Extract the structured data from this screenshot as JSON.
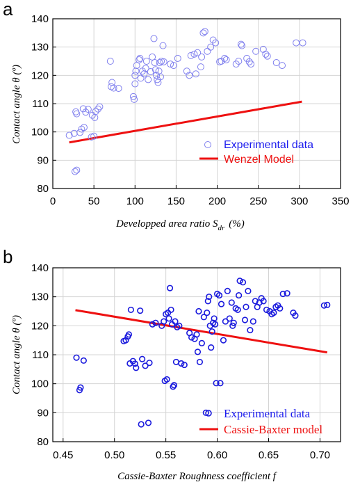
{
  "chart_data": [
    {
      "type": "scatter",
      "panel_label": "a",
      "xlabel": "Developped area ratio S",
      "xlabel_sub": "dr",
      "xlabel_unit": "(%)",
      "ylabel": "Contact angle θ (º)",
      "xlim": [
        0,
        350
      ],
      "ylim": [
        80,
        140
      ],
      "xticks": [
        0,
        50,
        100,
        150,
        200,
        250,
        300,
        350
      ],
      "yticks": [
        80,
        90,
        100,
        110,
        120,
        130,
        140
      ],
      "grid": true,
      "legend_position": "bottom-right",
      "colors": {
        "points": "#8080ee",
        "model": "#ee1111",
        "legend_text_points": "#1a1aee",
        "legend_text_model": "#ee1111"
      },
      "series": [
        {
          "name": "Experimental data",
          "kind": "points",
          "points": [
            [
              20,
              98.8
            ],
            [
              26,
              99.5
            ],
            [
              27,
              86.0
            ],
            [
              29,
              86.5
            ],
            [
              28,
              107.1
            ],
            [
              29,
              106.4
            ],
            [
              33,
              99.8
            ],
            [
              35,
              101.0
            ],
            [
              38,
              101.6
            ],
            [
              37,
              108.2
            ],
            [
              40,
              107.0
            ],
            [
              43,
              108.0
            ],
            [
              48,
              105.9
            ],
            [
              47,
              98.2
            ],
            [
              50,
              98.5
            ],
            [
              51,
              105.1
            ],
            [
              52,
              107.2
            ],
            [
              55,
              108.1
            ],
            [
              57,
              108.9
            ],
            [
              70,
              125.0
            ],
            [
              72,
              117.5
            ],
            [
              71,
              116.0
            ],
            [
              74,
              115.5
            ],
            [
              80,
              115.4
            ],
            [
              98,
              112.5
            ],
            [
              99,
              111.5
            ],
            [
              100,
              117.0
            ],
            [
              100,
              120.0
            ],
            [
              101,
              121.5
            ],
            [
              102,
              123.5
            ],
            [
              105,
              125.5
            ],
            [
              106,
              126.0
            ],
            [
              107,
              119.0
            ],
            [
              109,
              121.5
            ],
            [
              111,
              120.5
            ],
            [
              113,
              122.5
            ],
            [
              114,
              125.0
            ],
            [
              116,
              118.5
            ],
            [
              119,
              121.3
            ],
            [
              121,
              126.5
            ],
            [
              123,
              133.0
            ],
            [
              124,
              124.5
            ],
            [
              125,
              122.0
            ],
            [
              126,
              120.0
            ],
            [
              127,
              118.5
            ],
            [
              128,
              117.5
            ],
            [
              129,
              121.5
            ],
            [
              130,
              124.5
            ],
            [
              131,
              119.5
            ],
            [
              132,
              125.0
            ],
            [
              134,
              130.5
            ],
            [
              135,
              124.8
            ],
            [
              143,
              124.0
            ],
            [
              147,
              123.5
            ],
            [
              152,
              126.0
            ],
            [
              163,
              121.5
            ],
            [
              166,
              120.0
            ],
            [
              168,
              127.0
            ],
            [
              172,
              127.5
            ],
            [
              174,
              120.5
            ],
            [
              176,
              128.0
            ],
            [
              180,
              123.0
            ],
            [
              181,
              126.5
            ],
            [
              183,
              135.0
            ],
            [
              185,
              135.5
            ],
            [
              188,
              128.5
            ],
            [
              192,
              130.0
            ],
            [
              195,
              132.5
            ],
            [
              198,
              131.5
            ],
            [
              203,
              124.8
            ],
            [
              205,
              125.0
            ],
            [
              209,
              126.0
            ],
            [
              211,
              125.5
            ],
            [
              223,
              124.0
            ],
            [
              226,
              125.0
            ],
            [
              229,
              131.0
            ],
            [
              230,
              130.5
            ],
            [
              236,
              126.0
            ],
            [
              239,
              124.8
            ],
            [
              241,
              124.0
            ],
            [
              247,
              128.5
            ],
            [
              256,
              129.2
            ],
            [
              259,
              127.5
            ],
            [
              261,
              126.8
            ],
            [
              272,
              124.5
            ],
            [
              279,
              123.5
            ],
            [
              296,
              131.5
            ],
            [
              304,
              131.5
            ]
          ]
        },
        {
          "name": "Wenzel Model",
          "kind": "line",
          "points": [
            [
              20,
              96.3
            ],
            [
              303,
              110.7
            ]
          ]
        }
      ]
    },
    {
      "type": "scatter",
      "panel_label": "b",
      "xlabel": "Cassie-Baxter Roughness coefficient f",
      "ylabel": "Contact angle θ (º)",
      "xlim": [
        0.44,
        0.72
      ],
      "ylim": [
        80,
        140
      ],
      "xticks": [
        "0.45",
        "0.50",
        "0.55",
        "0.60",
        "0.65",
        "0.70"
      ],
      "yticks": [
        80,
        90,
        100,
        110,
        120,
        130,
        140
      ],
      "grid": true,
      "legend_position": "bottom-right",
      "colors": {
        "points": "#1a1add",
        "model": "#ee1111",
        "legend_text_points": "#1a1aee",
        "legend_text_model": "#ee1111"
      },
      "series": [
        {
          "name": "Experimental data",
          "kind": "points",
          "points": [
            [
              0.463,
              109.0
            ],
            [
              0.466,
              97.8
            ],
            [
              0.467,
              98.7
            ],
            [
              0.47,
              108.0
            ],
            [
              0.509,
              114.7
            ],
            [
              0.511,
              115.0
            ],
            [
              0.513,
              116.3
            ],
            [
              0.514,
              117.0
            ],
            [
              0.515,
              107.0
            ],
            [
              0.516,
              125.5
            ],
            [
              0.518,
              107.8
            ],
            [
              0.52,
              106.9
            ],
            [
              0.521,
              105.5
            ],
            [
              0.525,
              125.2
            ],
            [
              0.526,
              86.0
            ],
            [
              0.527,
              108.5
            ],
            [
              0.53,
              106.2
            ],
            [
              0.533,
              86.5
            ],
            [
              0.534,
              107.2
            ],
            [
              0.537,
              120.5
            ],
            [
              0.54,
              121.0
            ],
            [
              0.546,
              120.0
            ],
            [
              0.548,
              121.5
            ],
            [
              0.549,
              101.0
            ],
            [
              0.55,
              124.0
            ],
            [
              0.551,
              101.5
            ],
            [
              0.552,
              124.5
            ],
            [
              0.553,
              122.5
            ],
            [
              0.554,
              133.0
            ],
            [
              0.555,
              125.5
            ],
            [
              0.556,
              120.5
            ],
            [
              0.557,
              99.0
            ],
            [
              0.558,
              99.5
            ],
            [
              0.559,
              121.5
            ],
            [
              0.56,
              107.5
            ],
            [
              0.561,
              119.5
            ],
            [
              0.563,
              120.0
            ],
            [
              0.565,
              107.0
            ],
            [
              0.568,
              106.5
            ],
            [
              0.573,
              117.5
            ],
            [
              0.575,
              116.0
            ],
            [
              0.578,
              115.5
            ],
            [
              0.58,
              117.0
            ],
            [
              0.581,
              111.0
            ],
            [
              0.582,
              125.0
            ],
            [
              0.583,
              107.5
            ],
            [
              0.585,
              114.0
            ],
            [
              0.587,
              123.0
            ],
            [
              0.589,
              90.0
            ],
            [
              0.59,
              124.5
            ],
            [
              0.591,
              128.5
            ],
            [
              0.592,
              130.0
            ],
            [
              0.593,
              120.0
            ],
            [
              0.594,
              112.5
            ],
            [
              0.595,
              118.0
            ],
            [
              0.596,
              121.0
            ],
            [
              0.597,
              122.5
            ],
            [
              0.598,
              120.5
            ],
            [
              0.599,
              100.2
            ],
            [
              0.6,
              131.0
            ],
            [
              0.602,
              130.5
            ],
            [
              0.603,
              100.2
            ],
            [
              0.604,
              127.5
            ],
            [
              0.606,
              115.0
            ],
            [
              0.608,
              121.5
            ],
            [
              0.61,
              132.0
            ],
            [
              0.612,
              122.5
            ],
            [
              0.614,
              128.0
            ],
            [
              0.615,
              120.0
            ],
            [
              0.616,
              121.0
            ],
            [
              0.618,
              126.0
            ],
            [
              0.62,
              125.5
            ],
            [
              0.621,
              130.5
            ],
            [
              0.622,
              135.5
            ],
            [
              0.625,
              135.0
            ],
            [
              0.627,
              122.0
            ],
            [
              0.628,
              126.5
            ],
            [
              0.63,
              132.0
            ],
            [
              0.632,
              118.5
            ],
            [
              0.635,
              121.5
            ],
            [
              0.637,
              128.5
            ],
            [
              0.639,
              126.5
            ],
            [
              0.641,
              128.0
            ],
            [
              0.643,
              129.5
            ],
            [
              0.645,
              128.5
            ],
            [
              0.648,
              125.5
            ],
            [
              0.651,
              125.0
            ],
            [
              0.653,
              124.0
            ],
            [
              0.655,
              124.5
            ],
            [
              0.657,
              126.5
            ],
            [
              0.659,
              127.0
            ],
            [
              0.661,
              126.0
            ],
            [
              0.664,
              131.0
            ],
            [
              0.668,
              131.2
            ],
            [
              0.674,
              124.5
            ],
            [
              0.676,
              123.5
            ],
            [
              0.704,
              127.0
            ],
            [
              0.707,
              127.2
            ]
          ]
        },
        {
          "name": "Cassie-Baxter model",
          "kind": "line",
          "points": [
            [
              0.462,
              125.4
            ],
            [
              0.707,
              110.8
            ]
          ]
        }
      ]
    }
  ]
}
